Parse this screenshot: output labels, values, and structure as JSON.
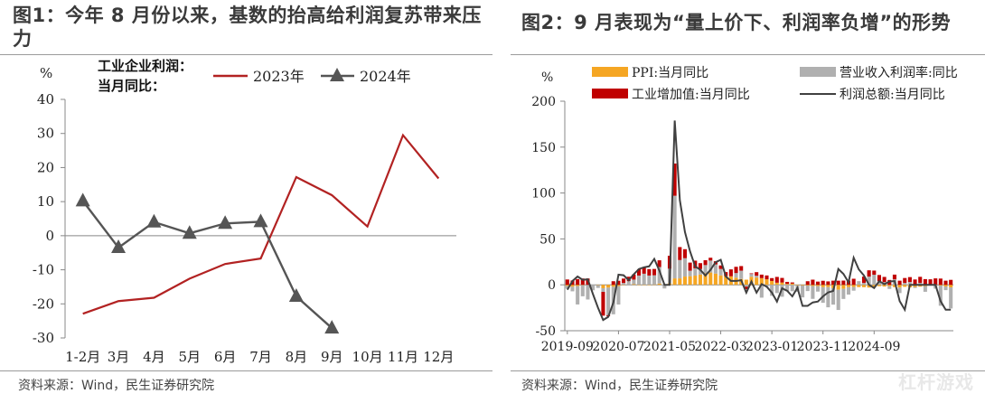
{
  "left": {
    "title": "图1：今年 8 月份以来，基数的抬高给利润复苏带来压力",
    "source": "资料来源：Wind，民生证券研究院",
    "chart_data": {
      "type": "line",
      "ylabel": "%",
      "ylim": [
        -30,
        40
      ],
      "yticks": [
        -30,
        -20,
        -10,
        0,
        10,
        20,
        30,
        40
      ],
      "legend_title_line1": "工业企业利润：",
      "legend_title_line2": "当月同比：",
      "categories": [
        "1-2月",
        "3月",
        "4月",
        "5月",
        "6月",
        "7月",
        "8月",
        "9月",
        "10月",
        "11月",
        "12月"
      ],
      "series": [
        {
          "name": "2023年",
          "color": "#b22222",
          "values": [
            -22.9,
            -19.2,
            -18.2,
            -12.6,
            -8.3,
            -6.7,
            17.2,
            11.9,
            2.7,
            29.5,
            16.8
          ]
        },
        {
          "name": "2024年",
          "color": "#555555",
          "values": [
            10.2,
            -3.5,
            4.0,
            0.7,
            3.6,
            4.1,
            -17.8,
            -27.1,
            null,
            null,
            null
          ]
        }
      ]
    }
  },
  "right": {
    "title": "图2：9 月表现为“量上价下、利润率负增”的形势",
    "source": "资料来源：Wind，民生证券研究院",
    "chart_data": {
      "type": "bar",
      "ylabel": "%",
      "ylim": [
        -50,
        200
      ],
      "yticks": [
        -50,
        0,
        50,
        100,
        150,
        200
      ],
      "x_tick_labels": [
        "2019-09",
        "2020-07",
        "2021-05",
        "2022-03",
        "2023-01",
        "2023-11",
        "2024-09"
      ],
      "series_names": {
        "ppi": "PPI:当月同比",
        "margin": "营业收入利润率:同比",
        "ind": "工业增加值:当月同比",
        "profit": "利润总额:当月同比"
      },
      "colors": {
        "ppi": "#f5a623",
        "margin": "#b0b0b0",
        "ind": "#c00000",
        "profit": "#404040"
      },
      "ppi": [
        -1.2,
        -2.1,
        -1.4,
        -0.5,
        0,
        0,
        -0.4,
        -3.7,
        -3.1,
        -2.1,
        -1.5,
        -0.4,
        0,
        0.7,
        0.1,
        0.1,
        0.1,
        0.4,
        1.4,
        0,
        1.6,
        7,
        7,
        9,
        9.4,
        10,
        11.2,
        12.5,
        13.4,
        12.2,
        10.3,
        9.6,
        9.3,
        7.8,
        6.4,
        5.6,
        8.8,
        7.9,
        7.3,
        6,
        4.2,
        2.3,
        2.5,
        1,
        1.3,
        -0.6,
        -0.7,
        -0.8,
        -1.3,
        -1.4,
        -2.6,
        -2.5,
        -3.6,
        -5.4,
        -4.4,
        -2.6,
        -2.4,
        -2.5,
        -2.6,
        -3,
        -2.7,
        -1.5,
        -1.9,
        -1.5,
        -2.5,
        -3,
        -2.2,
        -2.8,
        -2.5,
        -2,
        -1.6,
        -0.8,
        -0.2,
        -0.8,
        -1.8,
        -2.8
      ],
      "margin": [
        -3,
        -5,
        -20,
        -12,
        -16,
        -6,
        -3,
        -4,
        -30,
        -30,
        -20,
        2,
        4,
        5,
        10,
        12,
        10,
        10,
        18,
        -4,
        16,
        90,
        20,
        20,
        6,
        8,
        6,
        9,
        13,
        10,
        7,
        0,
        0,
        5,
        9,
        -2,
        3,
        2,
        -14,
        -2,
        -12,
        -9,
        -13,
        -7,
        -7,
        -7,
        -13,
        -6,
        -14,
        -6,
        -17,
        -22,
        -18,
        -22,
        -11,
        -8,
        -4,
        4,
        2,
        9,
        11,
        4,
        3,
        -3,
        6,
        -6,
        2,
        3,
        -1,
        2,
        -6,
        0,
        -4,
        -22,
        -4,
        -23
      ],
      "ind": [
        5.8,
        4.7,
        6.2,
        6.9,
        6.9,
        0,
        0,
        -25.9,
        -1.1,
        3.9,
        4.4,
        4.8,
        4.8,
        5.6,
        6.9,
        6.9,
        7,
        6.9,
        7.3,
        0,
        14.1,
        35.1,
        14.1,
        9.8,
        8.8,
        8.3,
        6.4,
        5.3,
        3.1,
        3.5,
        3.8,
        4.3,
        7.5,
        6.8,
        5,
        -2.9,
        0.7,
        3.9,
        3.8,
        4.2,
        3.1,
        6.3,
        5,
        2.2,
        1.3,
        0,
        0,
        3.9,
        5.6,
        3.5,
        4.4,
        3.7,
        4.5,
        4.5,
        4.6,
        4.6,
        6.6,
        0,
        7,
        6.8,
        4.5,
        6.7,
        5.6,
        5.3,
        5.1,
        4.5,
        5.4,
        5.4,
        5.8,
        6.7,
        6.2,
        6,
        7,
        6.8,
        4.5,
        5.4
      ],
      "profit": [
        -5.3,
        4.2,
        9,
        5.4,
        6,
        -10,
        -25,
        -38.3,
        -34.9,
        -19.3,
        11,
        10.4,
        5,
        11.5,
        17.2,
        19.1,
        20.1,
        28.2,
        15.5,
        0,
        0,
        178.9,
        92.3,
        57.5,
        36.4,
        20,
        16.4,
        10.1,
        16.3,
        24.6,
        27.2,
        9,
        4.2,
        4.2,
        5,
        -8.5,
        3.5,
        -8.5,
        0.8,
        -2.1,
        -8.5,
        -18.3,
        -3.8,
        -6.5,
        -12.6,
        -3.2,
        -22.9,
        -22.9,
        -19.2,
        -18.2,
        -12.6,
        -8.3,
        -6.7,
        17.2,
        11.9,
        2.7,
        29.5,
        16.8,
        10.2,
        0,
        -3.5,
        4,
        0.7,
        3.6,
        4.1,
        -17.8,
        -27.1,
        0,
        0,
        0,
        0,
        0,
        0,
        -17.8,
        -27.1,
        -27.1
      ]
    }
  },
  "watermark": "杠杆游戏"
}
